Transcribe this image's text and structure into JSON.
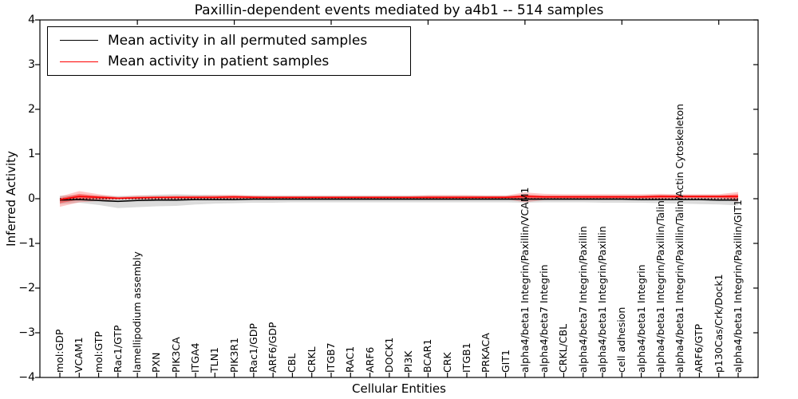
{
  "title": "Paxillin-dependent events mediated by a4b1 -- 514 samples",
  "axes": {
    "ylabel": "Inferred Activity",
    "xlabel": "Cellular Entities",
    "ytick_values": [
      4,
      3,
      2,
      1,
      0,
      -1,
      -2,
      -3,
      -4
    ],
    "ytick_labels": [
      "4",
      "3",
      "2",
      "1",
      "0",
      "−1",
      "−2",
      "−3",
      "−4"
    ]
  },
  "legend": {
    "entries": [
      {
        "name": "permuted",
        "label": "Mean activity in all permuted samples",
        "color": "#000000"
      },
      {
        "name": "patient",
        "label": "Mean activity in patient samples",
        "color": "#ff0000"
      }
    ]
  },
  "chart_data": {
    "type": "line",
    "title": "Paxillin-dependent events mediated by a4b1 -- 514 samples",
    "xlabel": "Cellular Entities",
    "ylabel": "Inferred Activity",
    "ylim": [
      -4,
      4
    ],
    "grid": false,
    "legend_position": "upper-left",
    "zero_line": {
      "style": "dotted",
      "color": "#000000",
      "y": 0
    },
    "categories": [
      "mol:GDP",
      "VCAM1",
      "mol:GTP",
      "Rac1/GTP",
      "lamellipodium assembly",
      "PXN",
      "PIK3CA",
      "ITGA4",
      "TLN1",
      "PIK3R1",
      "Rac1/GDP",
      "ARF6/GDP",
      "CBL",
      "CRKL",
      "ITGB7",
      "RAC1",
      "ARF6",
      "DOCK1",
      "PI3K",
      "BCAR1",
      "CRK",
      "ITGB1",
      "PRKACA",
      "GIT1",
      "alpha4/beta1 Integrin/Paxillin/VCAM1",
      "alpha4/beta7 Integrin",
      "CRKL/CBL",
      "alpha4/beta7 Integrin/Paxillin",
      "alpha4/beta1 Integrin/Paxillin",
      "cell adhesion",
      "alpha4/beta1 Integrin",
      "alpha4/beta1 Integrin/Paxillin/Talin",
      "alpha4/beta1 Integrin/Paxillin/Talin/Actin Cytoskeleton",
      "ARF6/GTP",
      "p130Cas/Crk/Dock1",
      "alpha4/beta1 Integrin/Paxillin/GIT1"
    ],
    "series": [
      {
        "name": "Mean activity in all permuted samples",
        "color": "#000000",
        "values": [
          -0.03,
          -0.02,
          -0.04,
          -0.06,
          -0.04,
          -0.03,
          -0.03,
          -0.02,
          -0.02,
          -0.02,
          -0.01,
          -0.01,
          -0.01,
          -0.01,
          -0.01,
          -0.01,
          -0.01,
          -0.01,
          -0.01,
          -0.01,
          -0.01,
          -0.01,
          -0.01,
          -0.01,
          -0.01,
          -0.01,
          -0.01,
          -0.01,
          -0.01,
          -0.01,
          -0.02,
          -0.02,
          -0.02,
          -0.02,
          -0.03,
          -0.03
        ]
      },
      {
        "name": "Mean activity in patient samples",
        "color": "#ff0000",
        "values": [
          -0.02,
          0.05,
          0.03,
          0.01,
          0.02,
          0.03,
          0.03,
          0.03,
          0.03,
          0.04,
          0.03,
          0.03,
          0.03,
          0.03,
          0.03,
          0.03,
          0.03,
          0.03,
          0.03,
          0.03,
          0.03,
          0.03,
          0.03,
          0.03,
          0.05,
          0.04,
          0.04,
          0.04,
          0.04,
          0.04,
          0.04,
          0.05,
          0.05,
          0.05,
          0.05,
          0.05
        ]
      }
    ],
    "bands": [
      {
        "name": "permuted-range-band",
        "color": "#000000",
        "opacity": 0.14,
        "upper": [
          0.07,
          0.08,
          0.07,
          0.06,
          0.07,
          0.09,
          0.1,
          0.09,
          0.08,
          0.07,
          0.07,
          0.07,
          0.07,
          0.07,
          0.07,
          0.07,
          0.07,
          0.07,
          0.07,
          0.07,
          0.07,
          0.07,
          0.07,
          0.07,
          0.08,
          0.07,
          0.07,
          0.07,
          0.07,
          0.07,
          0.07,
          0.08,
          0.08,
          0.08,
          0.08,
          0.07
        ],
        "lower": [
          -0.12,
          -0.09,
          -0.14,
          -0.21,
          -0.19,
          -0.17,
          -0.16,
          -0.13,
          -0.11,
          -0.1,
          -0.09,
          -0.09,
          -0.08,
          -0.08,
          -0.08,
          -0.08,
          -0.08,
          -0.08,
          -0.08,
          -0.08,
          -0.08,
          -0.08,
          -0.08,
          -0.08,
          -0.09,
          -0.08,
          -0.08,
          -0.08,
          -0.09,
          -0.09,
          -0.09,
          -0.1,
          -0.11,
          -0.12,
          -0.13,
          -0.15
        ]
      },
      {
        "name": "patient-range-band-outer",
        "color": "#ff0000",
        "opacity": 0.22,
        "upper": [
          0.05,
          0.17,
          0.1,
          0.04,
          0.07,
          0.06,
          0.07,
          0.07,
          0.08,
          0.09,
          0.07,
          0.06,
          0.06,
          0.06,
          0.06,
          0.06,
          0.06,
          0.06,
          0.06,
          0.08,
          0.08,
          0.08,
          0.07,
          0.07,
          0.14,
          0.11,
          0.1,
          0.1,
          0.1,
          0.1,
          0.1,
          0.11,
          0.1,
          0.1,
          0.1,
          0.15
        ],
        "lower": [
          -0.18,
          -0.08,
          -0.05,
          -0.02,
          -0.02,
          -0.02,
          -0.03,
          -0.03,
          -0.02,
          -0.03,
          -0.02,
          -0.02,
          -0.01,
          -0.01,
          -0.01,
          -0.01,
          -0.01,
          -0.01,
          -0.01,
          -0.02,
          -0.02,
          -0.02,
          -0.01,
          -0.01,
          -0.08,
          -0.03,
          -0.02,
          -0.02,
          -0.02,
          -0.02,
          -0.02,
          -0.03,
          -0.02,
          -0.02,
          -0.03,
          -0.06
        ]
      },
      {
        "name": "patient-range-band-inner",
        "color": "#ff0000",
        "opacity": 0.38,
        "upper": [
          0.01,
          0.11,
          0.06,
          0.03,
          0.04,
          0.04,
          0.05,
          0.05,
          0.05,
          0.06,
          0.05,
          0.04,
          0.04,
          0.04,
          0.04,
          0.04,
          0.04,
          0.04,
          0.04,
          0.05,
          0.05,
          0.05,
          0.05,
          0.05,
          0.09,
          0.07,
          0.07,
          0.07,
          0.07,
          0.07,
          0.07,
          0.08,
          0.07,
          0.07,
          0.07,
          0.1
        ],
        "lower": [
          -0.1,
          -0.02,
          -0.01,
          0.0,
          0.0,
          0.01,
          0.01,
          0.01,
          0.01,
          0.01,
          0.01,
          0.01,
          0.01,
          0.01,
          0.01,
          0.01,
          0.01,
          0.01,
          0.01,
          0.01,
          0.01,
          0.01,
          0.01,
          0.01,
          -0.02,
          0.01,
          0.01,
          0.01,
          0.01,
          0.01,
          0.01,
          0.01,
          0.02,
          0.02,
          0.02,
          -0.01
        ]
      }
    ]
  }
}
